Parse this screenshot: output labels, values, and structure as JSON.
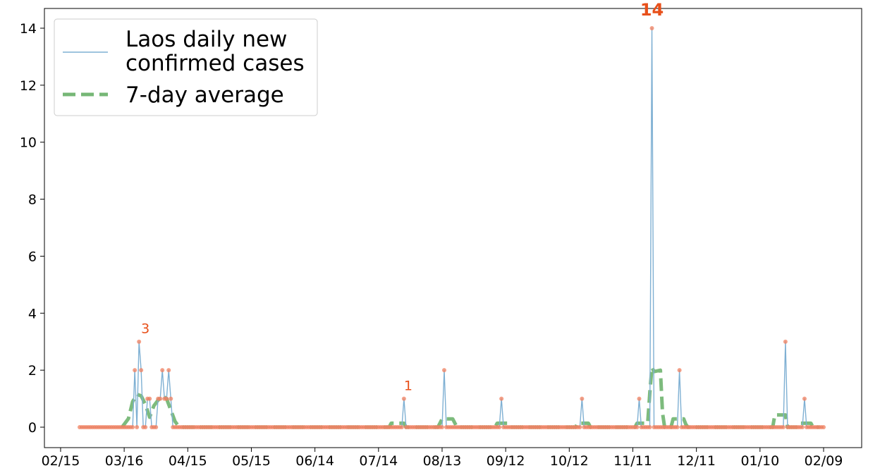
{
  "chart_data": {
    "type": "line",
    "x_start": "2020-02-24",
    "x_end": "2021-02-09",
    "x_tick_labels": [
      "02/15",
      "03/16",
      "04/15",
      "05/15",
      "06/14",
      "07/14",
      "08/13",
      "09/12",
      "10/12",
      "11/11",
      "12/11",
      "01/10",
      "02/09"
    ],
    "y_tick_labels": [
      "0",
      "2",
      "4",
      "6",
      "8",
      "10",
      "12",
      "14"
    ],
    "ylim": [
      -0.7,
      14.7
    ],
    "series": [
      {
        "name": "Laos daily new confirmed cases",
        "type": "line",
        "color": "#7fb0d3",
        "points": [
          [
            "2020-03-21",
            2
          ],
          [
            "2020-03-23",
            3
          ],
          [
            "2020-03-24",
            2
          ],
          [
            "2020-03-27",
            1
          ],
          [
            "2020-03-28",
            1
          ],
          [
            "2020-04-01",
            1
          ],
          [
            "2020-04-02",
            1
          ],
          [
            "2020-04-03",
            2
          ],
          [
            "2020-04-04",
            1
          ],
          [
            "2020-04-05",
            1
          ],
          [
            "2020-04-06",
            2
          ],
          [
            "2020-04-07",
            1
          ],
          [
            "2020-07-26",
            1
          ],
          [
            "2020-08-14",
            2
          ],
          [
            "2020-09-10",
            1
          ],
          [
            "2020-10-18",
            1
          ],
          [
            "2020-11-14",
            1
          ],
          [
            "2020-11-20",
            14
          ],
          [
            "2020-12-03",
            2
          ],
          [
            "2021-01-22",
            3
          ],
          [
            "2021-01-31",
            1
          ]
        ]
      },
      {
        "name": "7-day average",
        "type": "line",
        "color": "#76b776",
        "style": "dashed",
        "points": [
          [
            "2020-03-15",
            0
          ],
          [
            "2020-03-18",
            0.3
          ],
          [
            "2020-03-20",
            0.9
          ],
          [
            "2020-03-22",
            1.15
          ],
          [
            "2020-03-24",
            1.1
          ],
          [
            "2020-03-26",
            0.8
          ],
          [
            "2020-03-28",
            0.35
          ],
          [
            "2020-03-30",
            0.75
          ],
          [
            "2020-04-01",
            0.95
          ],
          [
            "2020-04-03",
            1.1
          ],
          [
            "2020-04-05",
            1.0
          ],
          [
            "2020-04-07",
            0.6
          ],
          [
            "2020-04-09",
            0.2
          ],
          [
            "2020-04-11",
            0
          ],
          [
            "2020-07-19",
            0
          ],
          [
            "2020-07-20",
            0.14
          ],
          [
            "2020-07-26",
            0.14
          ],
          [
            "2020-07-27",
            0
          ],
          [
            "2020-08-11",
            0
          ],
          [
            "2020-08-12",
            0.14
          ],
          [
            "2020-08-13",
            0.29
          ],
          [
            "2020-08-18",
            0.29
          ],
          [
            "2020-08-20",
            0
          ],
          [
            "2020-09-07",
            0
          ],
          [
            "2020-09-08",
            0.14
          ],
          [
            "2020-09-13",
            0.14
          ],
          [
            "2020-09-14",
            0
          ],
          [
            "2020-10-15",
            0
          ],
          [
            "2020-10-16",
            0.14
          ],
          [
            "2020-10-21",
            0.14
          ],
          [
            "2020-10-22",
            0
          ],
          [
            "2020-11-12",
            0
          ],
          [
            "2020-11-13",
            0.14
          ],
          [
            "2020-11-18",
            0.14
          ],
          [
            "2020-11-19",
            1.2
          ],
          [
            "2020-11-20",
            2.1
          ],
          [
            "2020-11-21",
            1.95
          ],
          [
            "2020-11-24",
            2.0
          ],
          [
            "2020-11-25",
            0.5
          ],
          [
            "2020-11-26",
            0
          ],
          [
            "2020-11-29",
            0
          ],
          [
            "2020-11-30",
            0.29
          ],
          [
            "2020-12-05",
            0.29
          ],
          [
            "2020-12-06",
            0.1
          ],
          [
            "2020-12-07",
            0
          ],
          [
            "2021-01-16",
            0
          ],
          [
            "2021-01-17",
            0.43
          ],
          [
            "2021-01-21",
            0.43
          ],
          [
            "2021-01-22",
            0.43
          ],
          [
            "2021-01-23",
            0
          ],
          [
            "2021-01-28",
            0
          ],
          [
            "2021-01-29",
            0.14
          ],
          [
            "2021-02-03",
            0.14
          ],
          [
            "2021-02-04",
            0
          ],
          [
            "2021-02-07",
            0
          ]
        ]
      }
    ],
    "annotations": [
      {
        "date": "2020-03-24",
        "value": 3,
        "text": "3",
        "size": "normal"
      },
      {
        "date": "2020-07-26",
        "value": 1,
        "text": "1",
        "size": "normal"
      },
      {
        "date": "2020-11-20",
        "value": 14,
        "text": "14",
        "size": "large"
      }
    ],
    "marker_color": "#f08060",
    "annotation_color": "#e8501a",
    "legend": {
      "position": "top-left",
      "entries": [
        {
          "line1": "Laos daily new",
          "line2": "confirmed cases"
        },
        {
          "line1": "7-day average",
          "line2": ""
        }
      ]
    }
  }
}
